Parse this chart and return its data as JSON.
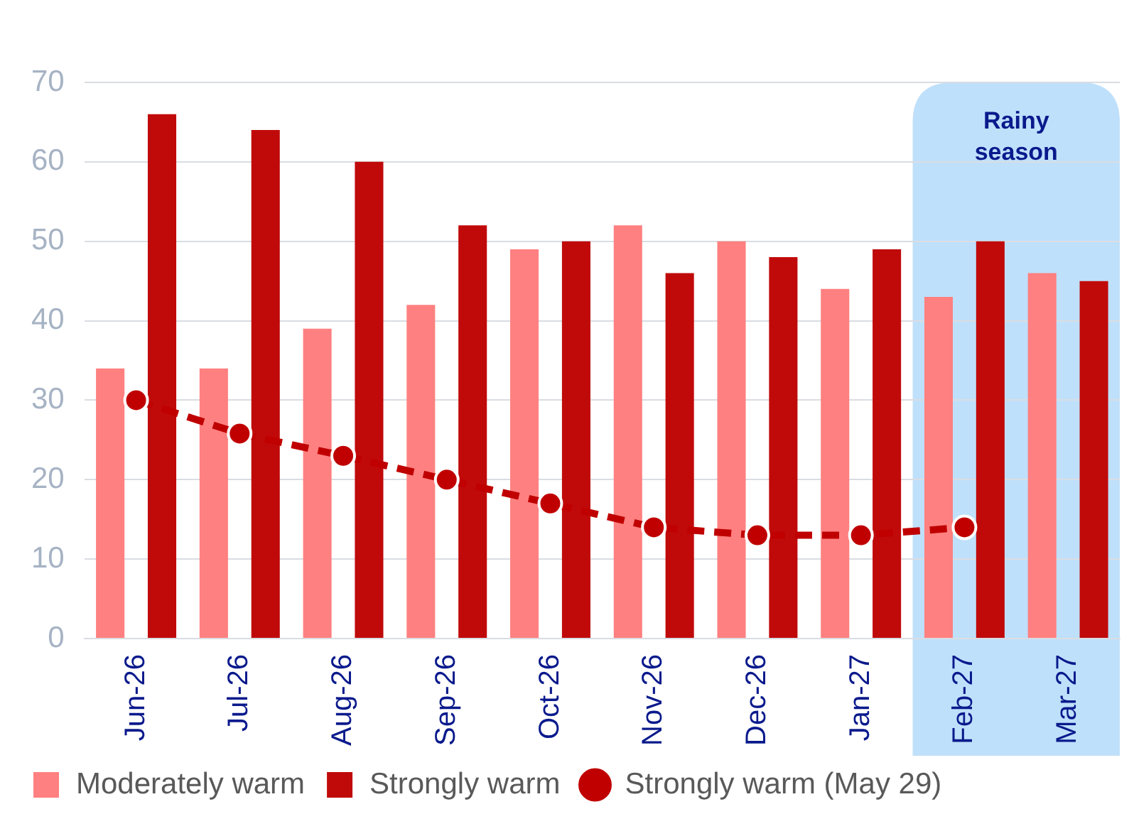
{
  "chart_data": {
    "type": "bar",
    "categories": [
      "Jun-26",
      "Jul-26",
      "Aug-26",
      "Sep-26",
      "Oct-26",
      "Nov-26",
      "Dec-26",
      "Jan-27",
      "Feb-27",
      "Mar-27"
    ],
    "series": [
      {
        "name": "Moderately warm",
        "color": "#ff8080",
        "values": [
          34,
          34,
          39,
          42,
          49,
          52,
          50,
          44,
          43,
          46
        ]
      },
      {
        "name": "Strongly warm",
        "color": "#c00a0a",
        "values": [
          66,
          64,
          60,
          52,
          50,
          46,
          48,
          49,
          50,
          45
        ]
      },
      {
        "name": "Strongly warm (May 29)",
        "type": "line",
        "color": "#c00000",
        "marker": "circle",
        "line_style": "dashed",
        "values": [
          30,
          25.8,
          23,
          20,
          17,
          14,
          13,
          13,
          14,
          null
        ]
      }
    ],
    "ylim": [
      0,
      70
    ],
    "yticks": [
      0,
      10,
      20,
      30,
      40,
      50,
      60,
      70
    ],
    "grid": "y",
    "legend": "bottom",
    "bands": [
      {
        "axis": "x",
        "from": "Feb-27",
        "to": "Mar-27",
        "label": "Rainy season",
        "color": "#bfe0fb"
      }
    ]
  }
}
